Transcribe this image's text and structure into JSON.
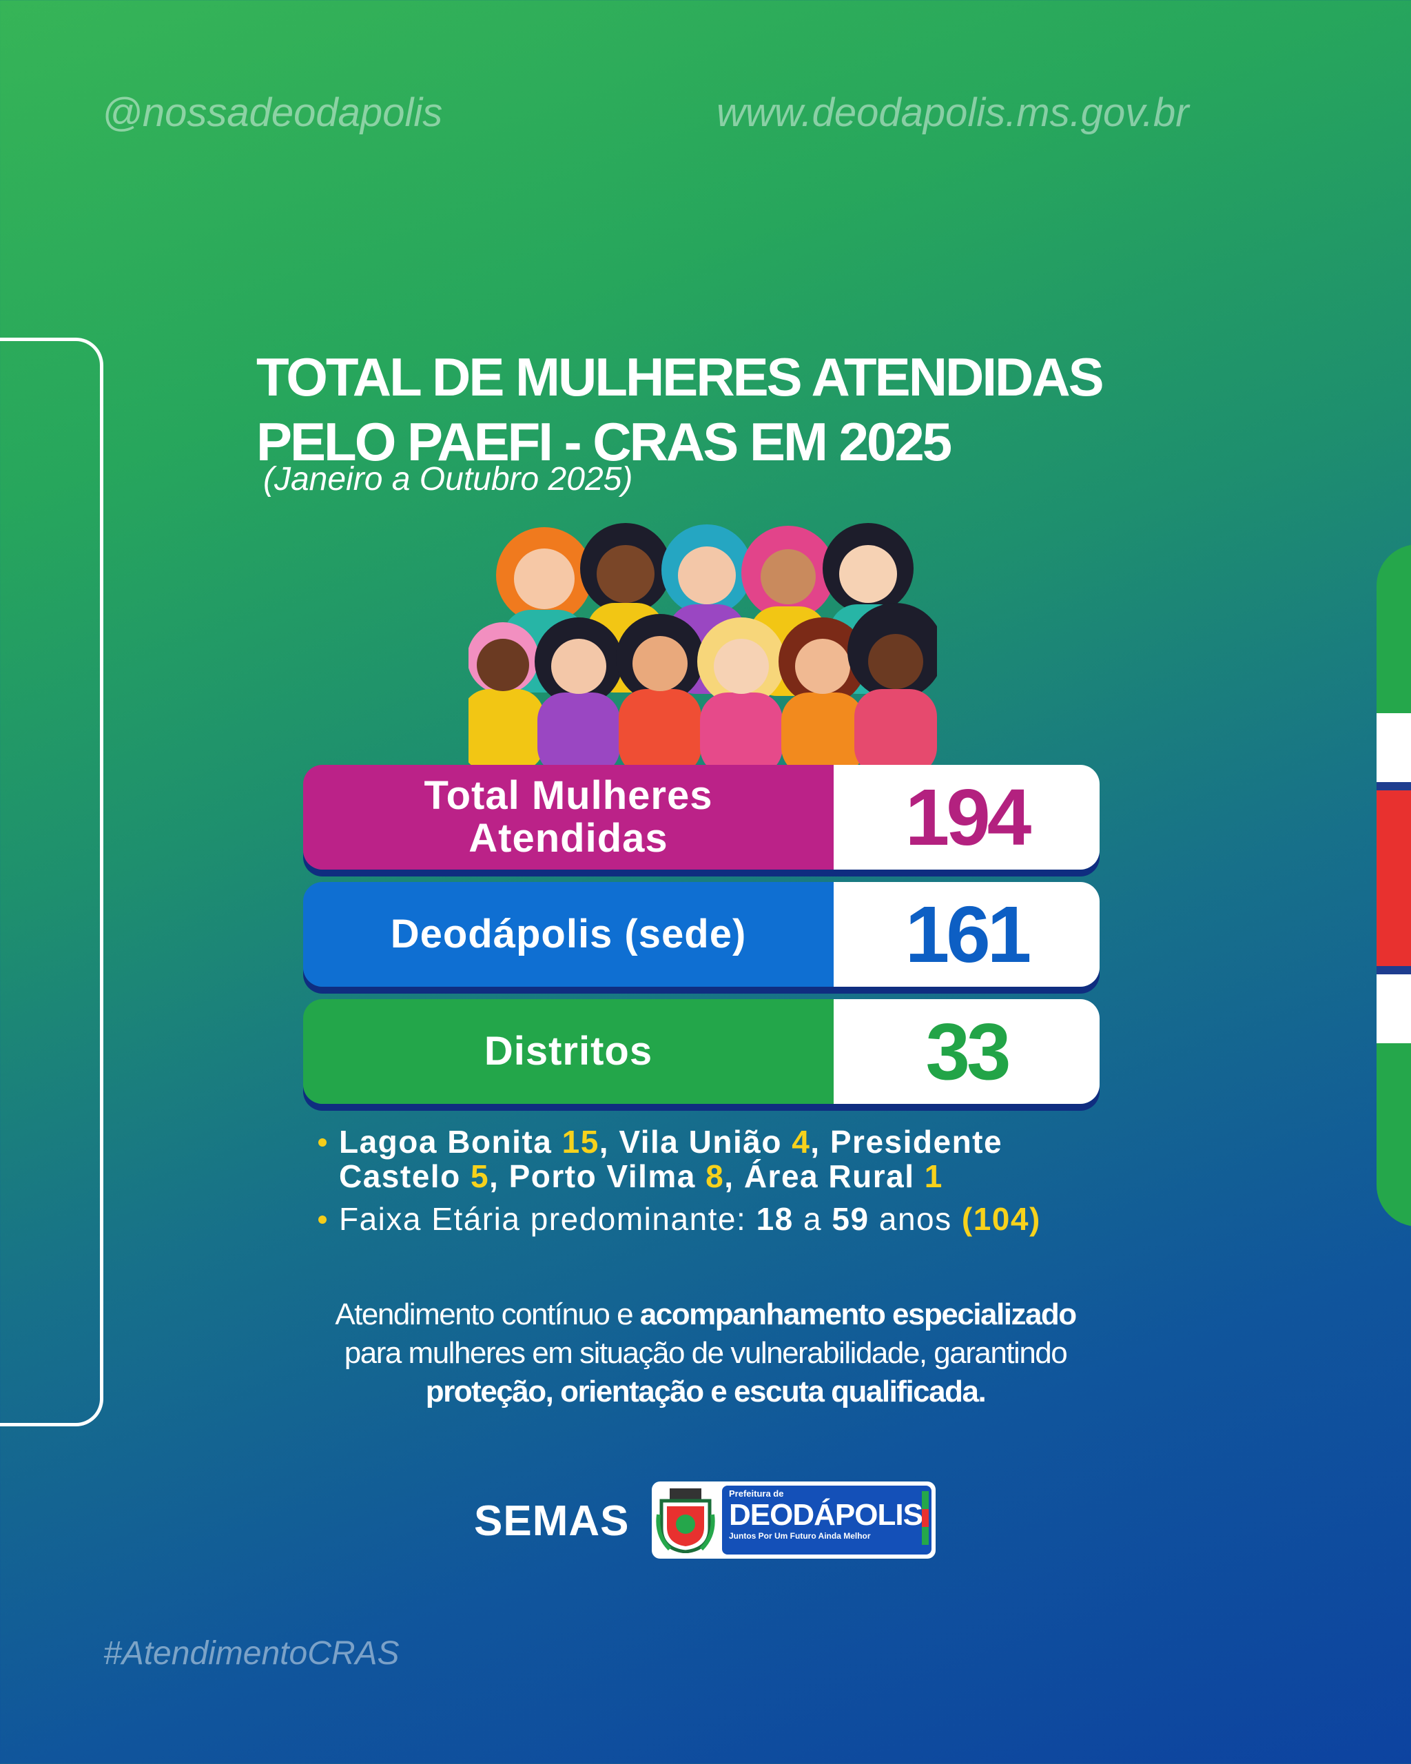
{
  "header": {
    "handle": "@nossadeodapolis",
    "website": "www.deodapolis.ms.gov.br"
  },
  "title": {
    "line1": "TOTAL DE MULHERES ATENDIDAS",
    "line2": "PELO PAEFI - CRAS EM 2025",
    "period": "(Janeiro a Outubro 2025)"
  },
  "stats": [
    {
      "label_line1": "Total Mulheres",
      "label_line2": "Atendidas",
      "value": "194",
      "color": "#bb2288",
      "value_color": "#b3217f"
    },
    {
      "label_line1": "Deodápolis (sede)",
      "label_line2": "",
      "value": "161",
      "color": "#0f6fd2",
      "value_color": "#0d5fc4"
    },
    {
      "label_line1": "Distritos",
      "label_line2": "",
      "value": "33",
      "color": "#23a64a",
      "value_color": "#22a447"
    }
  ],
  "districts": {
    "lagoa_bonita": "Lagoa Bonita",
    "lagoa_bonita_n": "15",
    "vila_uniao": ", Vila União",
    "vila_uniao_n": "4",
    "presidente": ", Presidente",
    "castelo": "Castelo",
    "castelo_n": "5",
    "porto_vilma": ", Porto Vilma",
    "porto_vilma_n": "8",
    "area_rural": ", Área Rural",
    "area_rural_n": "1"
  },
  "age": {
    "prefix": "Faixa Etária predominante:",
    "from": "18",
    "mid": "a",
    "to": "59",
    "suffix": "anos",
    "count": "(104)"
  },
  "description": {
    "p1": "Atendimento contínuo e ",
    "p1_bold": "acompanhamento especializado",
    "p2": "para mulheres em situação de vulnerabilidade, garantindo",
    "p3_bold": "proteção, orientação e escuta qualificada."
  },
  "footer": {
    "semas": "SEMAS",
    "logo_top": "Prefeitura de",
    "logo_name": "DEODÁPOLIS",
    "logo_tagline": "Juntos Por Um Futuro Ainda Melhor",
    "hashtag": "#AtendimentoCRAS"
  },
  "colors": {
    "flag_green": "#25a74b",
    "flag_white": "#ffffff",
    "flag_red": "#e8312f",
    "highlight_yellow": "#f7d21c"
  }
}
